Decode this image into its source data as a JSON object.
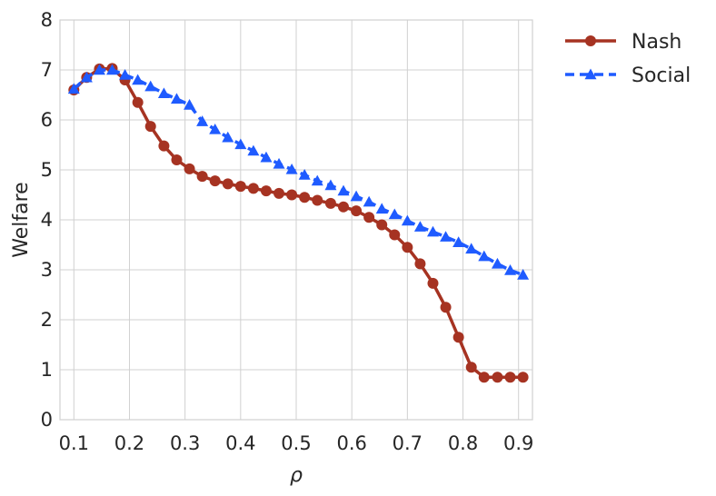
{
  "chart_data": {
    "type": "line",
    "xlabel": "ρ",
    "ylabel": "Welfare",
    "xlim": [
      0.075,
      0.925
    ],
    "ylim": [
      0,
      8
    ],
    "xticks": [
      0.1,
      0.2,
      0.3,
      0.4,
      0.5,
      0.6,
      0.7,
      0.8,
      0.9
    ],
    "xtick_labels": [
      "0.1",
      "0.2",
      "0.3",
      "0.4",
      "0.5",
      "0.6",
      "0.7",
      "0.8",
      "0.9"
    ],
    "yticks": [
      0,
      1,
      2,
      3,
      4,
      5,
      6,
      7,
      8
    ],
    "ytick_labels": [
      "0",
      "1",
      "2",
      "3",
      "4",
      "5",
      "6",
      "7",
      "8"
    ],
    "grid": true,
    "legend_position": "outside-top-right",
    "x": [
      0.1,
      0.123,
      0.146,
      0.169,
      0.192,
      0.215,
      0.238,
      0.262,
      0.285,
      0.308,
      0.331,
      0.354,
      0.377,
      0.4,
      0.423,
      0.446,
      0.469,
      0.492,
      0.515,
      0.538,
      0.562,
      0.585,
      0.608,
      0.631,
      0.654,
      0.677,
      0.7,
      0.723,
      0.746,
      0.769,
      0.792,
      0.815,
      0.838,
      0.862,
      0.885,
      0.908
    ],
    "series": [
      {
        "name": "Nash",
        "color": "#a63322",
        "marker": "circle",
        "linestyle": "solid",
        "x": [
          0.1,
          0.123,
          0.146,
          0.169,
          0.192,
          0.215,
          0.238,
          0.262,
          0.285,
          0.308,
          0.331,
          0.354,
          0.377,
          0.4,
          0.423,
          0.446,
          0.469,
          0.492,
          0.515,
          0.538,
          0.562,
          0.585,
          0.608,
          0.631,
          0.654,
          0.677,
          0.7,
          0.723,
          0.746,
          0.769,
          0.792,
          0.815,
          0.838,
          0.862,
          0.885,
          0.908
        ],
        "values": [
          6.6,
          6.85,
          7.02,
          7.03,
          6.8,
          6.35,
          5.87,
          5.48,
          5.2,
          5.02,
          4.87,
          4.78,
          4.72,
          4.67,
          4.63,
          4.58,
          4.53,
          4.5,
          4.45,
          4.39,
          4.33,
          4.26,
          4.18,
          4.05,
          3.9,
          3.7,
          3.45,
          3.12,
          2.73,
          2.25,
          1.65,
          1.05,
          0.85,
          0.85,
          0.85,
          0.85
        ]
      },
      {
        "name": "Social",
        "color": "#1f5bff",
        "marker": "triangle",
        "linestyle": "dashed",
        "x": [
          0.1,
          0.123,
          0.146,
          0.169,
          0.192,
          0.215,
          0.238,
          0.262,
          0.285,
          0.308,
          0.331,
          0.354,
          0.377,
          0.4,
          0.423,
          0.446,
          0.469,
          0.492,
          0.515,
          0.538,
          0.562,
          0.585,
          0.608,
          0.631,
          0.654,
          0.677,
          0.7,
          0.723,
          0.746,
          0.769,
          0.792,
          0.815,
          0.838,
          0.862,
          0.885,
          0.908
        ],
        "values": [
          6.62,
          6.85,
          7.0,
          7.0,
          6.9,
          6.8,
          6.67,
          6.53,
          6.42,
          6.3,
          5.97,
          5.81,
          5.65,
          5.51,
          5.38,
          5.25,
          5.12,
          5.01,
          4.9,
          4.78,
          4.69,
          4.58,
          4.47,
          4.36,
          4.22,
          4.11,
          3.98,
          3.86,
          3.76,
          3.66,
          3.55,
          3.42,
          3.27,
          3.12,
          2.99,
          2.9
        ]
      }
    ]
  }
}
